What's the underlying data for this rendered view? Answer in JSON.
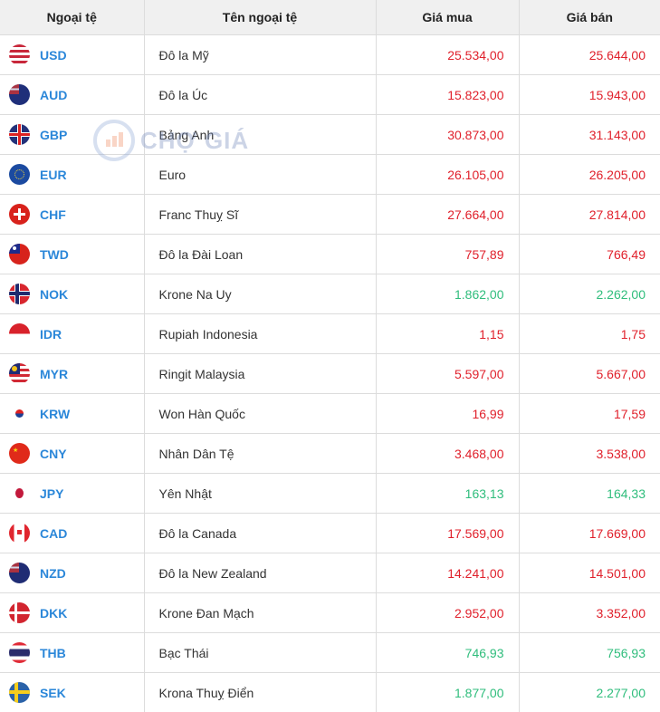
{
  "table": {
    "headers": [
      "Ngoại tệ",
      "Tên ngoại tệ",
      "Giá mua",
      "Giá bán"
    ],
    "rows": [
      {
        "code": "USD",
        "name": "Đô la Mỹ",
        "buy": "25.534,00",
        "sell": "25.644,00",
        "trend": "red",
        "flag": "us-flag-icon"
      },
      {
        "code": "AUD",
        "name": "Đô la Úc",
        "buy": "15.823,00",
        "sell": "15.943,00",
        "trend": "red",
        "flag": "au-flag-icon"
      },
      {
        "code": "GBP",
        "name": "Bảng Anh",
        "buy": "30.873,00",
        "sell": "31.143,00",
        "trend": "red",
        "flag": "gb-flag-icon"
      },
      {
        "code": "EUR",
        "name": "Euro",
        "buy": "26.105,00",
        "sell": "26.205,00",
        "trend": "red",
        "flag": "eu-flag-icon"
      },
      {
        "code": "CHF",
        "name": "Franc Thuỵ Sĩ",
        "buy": "27.664,00",
        "sell": "27.814,00",
        "trend": "red",
        "flag": "ch-flag-icon"
      },
      {
        "code": "TWD",
        "name": "Đô la Đài Loan",
        "buy": "757,89",
        "sell": "766,49",
        "trend": "red",
        "flag": "tw-flag-icon"
      },
      {
        "code": "NOK",
        "name": "Krone Na Uy",
        "buy": "1.862,00",
        "sell": "2.262,00",
        "trend": "green",
        "flag": "no-flag-icon"
      },
      {
        "code": "IDR",
        "name": "Rupiah Indonesia",
        "buy": "1,15",
        "sell": "1,75",
        "trend": "red",
        "flag": "id-flag-icon"
      },
      {
        "code": "MYR",
        "name": "Ringit Malaysia",
        "buy": "5.597,00",
        "sell": "5.667,00",
        "trend": "red",
        "flag": "my-flag-icon"
      },
      {
        "code": "KRW",
        "name": "Won Hàn Quốc",
        "buy": "16,99",
        "sell": "17,59",
        "trend": "red",
        "flag": "kr-flag-icon"
      },
      {
        "code": "CNY",
        "name": "Nhân Dân Tệ",
        "buy": "3.468,00",
        "sell": "3.538,00",
        "trend": "red",
        "flag": "cn-flag-icon"
      },
      {
        "code": "JPY",
        "name": "Yên Nhật",
        "buy": "163,13",
        "sell": "164,33",
        "trend": "green",
        "flag": "jp-flag-icon"
      },
      {
        "code": "CAD",
        "name": "Đô la Canada",
        "buy": "17.569,00",
        "sell": "17.669,00",
        "trend": "red",
        "flag": "ca-flag-icon"
      },
      {
        "code": "NZD",
        "name": "Đô la New Zealand",
        "buy": "14.241,00",
        "sell": "14.501,00",
        "trend": "red",
        "flag": "nz-flag-icon"
      },
      {
        "code": "DKK",
        "name": "Krone Đan Mạch",
        "buy": "2.952,00",
        "sell": "3.352,00",
        "trend": "red",
        "flag": "dk-flag-icon"
      },
      {
        "code": "THB",
        "name": "Bạc Thái",
        "buy": "746,93",
        "sell": "756,93",
        "trend": "green",
        "flag": "th-flag-icon"
      },
      {
        "code": "SEK",
        "name": "Krona Thuỵ Điển",
        "buy": "1.877,00",
        "sell": "2.277,00",
        "trend": "green",
        "flag": "se-flag-icon"
      }
    ]
  },
  "watermark": {
    "text": "CHỢ GIÁ"
  },
  "colors": {
    "up": "#e0202b",
    "down": "#2fbd7c",
    "code": "#2b87d9",
    "header_bg": "#f0f0f0"
  }
}
